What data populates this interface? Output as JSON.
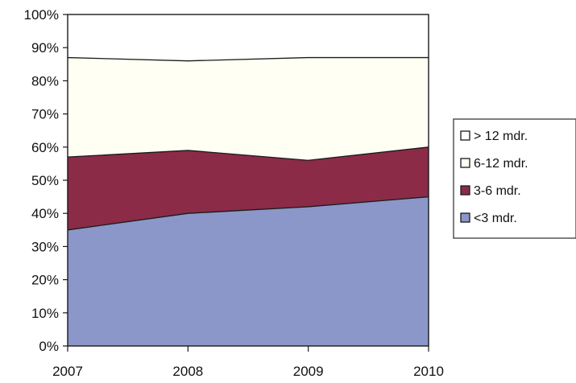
{
  "chart_data": {
    "type": "area",
    "stacked": true,
    "percent": true,
    "x": [
      "2007",
      "2008",
      "2009",
      "2010"
    ],
    "ylim": [
      0,
      100
    ],
    "ytick_labels": [
      "0%",
      "10%",
      "20%",
      "30%",
      "40%",
      "50%",
      "60%",
      "70%",
      "80%",
      "90%",
      "100%"
    ],
    "title": "",
    "xlabel": "",
    "ylabel": "",
    "grid": false,
    "legend_position": "right",
    "series": [
      {
        "name": "<3 mdr.",
        "values": [
          35,
          40,
          42,
          45
        ],
        "color": "#8a97c8"
      },
      {
        "name": "3-6 mdr.",
        "values": [
          22,
          19,
          14,
          15
        ],
        "color": "#8b2b47"
      },
      {
        "name": "6-12 mdr.",
        "values": [
          30,
          27,
          31,
          27
        ],
        "color": "#fffff4"
      },
      {
        "name": "> 12 mdr.",
        "values": [
          13,
          14,
          13,
          13
        ],
        "color": "#ffffff"
      }
    ],
    "legend_order": [
      "> 12 mdr.",
      "6-12 mdr.",
      "3-6 mdr.",
      "<3 mdr."
    ]
  }
}
